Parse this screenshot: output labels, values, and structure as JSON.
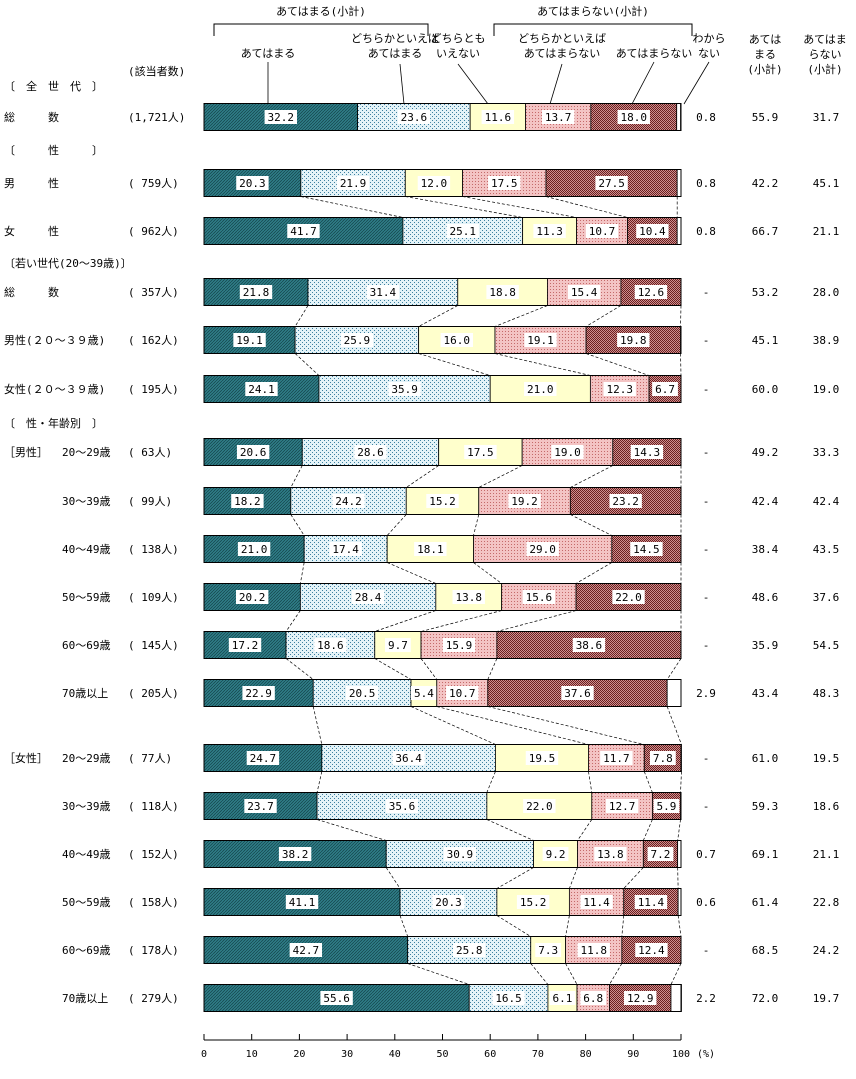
{
  "chart_data": {
    "type": "bar",
    "stacked": "100%",
    "header": {
      "applies_subtotal": "あてはまる(小計)",
      "not_applies_subtotal": "あてはまらない(小計)",
      "respondents_col": "(該当者数)",
      "categories": [
        {
          "key": "s1",
          "lines": [
            "あてはまる"
          ]
        },
        {
          "key": "s2",
          "lines": [
            "どちらかといえば",
            "あてはまる"
          ]
        },
        {
          "key": "s3",
          "lines": [
            "どちらとも",
            "いえない"
          ]
        },
        {
          "key": "s4",
          "lines": [
            "どちらかといえば",
            "あてはまらない"
          ]
        },
        {
          "key": "s5",
          "lines": [
            "あてはまらない"
          ]
        },
        {
          "key": "s6",
          "lines": [
            "わから",
            "ない"
          ]
        }
      ],
      "col_applies": [
        "あては",
        "まる",
        "(小計)"
      ],
      "col_not_applies": [
        "あてはま",
        "らない",
        "(小計)"
      ]
    },
    "sections": [
      {
        "label": "〔　全　世　代　〕",
        "rows": [
          {
            "label": "総　　　数",
            "n": "(1,721人)",
            "values": [
              32.2,
              23.6,
              11.6,
              13.7,
              18.0,
              0.8
            ],
            "labels": [
              "32.2",
              "23.6",
              "11.6",
              "13.7",
              "18.0",
              ""
            ],
            "dk": "0.8",
            "applies": "55.9",
            "not_applies": "31.7"
          }
        ]
      },
      {
        "label": "〔　　　性　　　〕",
        "rows": [
          {
            "label": "男　　　性",
            "n": "( 759人)",
            "values": [
              20.3,
              21.9,
              12.0,
              17.5,
              27.5,
              0.8
            ],
            "labels": [
              "20.3",
              "21.9",
              "12.0",
              "17.5",
              "27.5",
              ""
            ],
            "dk": "0.8",
            "applies": "42.2",
            "not_applies": "45.1"
          },
          {
            "label": "女　　　性",
            "n": "( 962人)",
            "values": [
              41.7,
              25.1,
              11.3,
              10.7,
              10.4,
              0.8
            ],
            "labels": [
              "41.7",
              "25.1",
              "11.3",
              "10.7",
              "10.4",
              ""
            ],
            "dk": "0.8",
            "applies": "66.7",
            "not_applies": "21.1"
          }
        ]
      },
      {
        "label": "〔若い世代(20～39歳)〕",
        "rows": [
          {
            "label": "総　　　数",
            "n": "( 357人)",
            "values": [
              21.8,
              31.4,
              18.8,
              15.4,
              12.6,
              0
            ],
            "labels": [
              "21.8",
              "31.4",
              "18.8",
              "15.4",
              "12.6",
              ""
            ],
            "dk": "-",
            "applies": "53.2",
            "not_applies": "28.0"
          },
          {
            "label": "男性(２０～３９歳)",
            "n": "( 162人)",
            "values": [
              19.1,
              25.9,
              16.0,
              19.1,
              19.8,
              0
            ],
            "labels": [
              "19.1",
              "25.9",
              "16.0",
              "19.1",
              "19.8",
              ""
            ],
            "dk": "-",
            "applies": "45.1",
            "not_applies": "38.9"
          },
          {
            "label": "女性(２０～３９歳)",
            "n": "( 195人)",
            "values": [
              24.1,
              35.9,
              21.0,
              12.3,
              6.7,
              0
            ],
            "labels": [
              "24.1",
              "35.9",
              "21.0",
              "12.3",
              "6.7",
              ""
            ],
            "dk": "-",
            "applies": "60.0",
            "not_applies": "19.0"
          }
        ]
      },
      {
        "label": "〔　性・年齢別　〕",
        "rows": [
          {
            "group": "［男性］",
            "label": "20～29歳",
            "n": "(  63人)",
            "values": [
              20.6,
              28.6,
              17.5,
              19.0,
              14.3,
              0
            ],
            "labels": [
              "20.6",
              "28.6",
              "17.5",
              "19.0",
              "14.3",
              ""
            ],
            "dk": "-",
            "applies": "49.2",
            "not_applies": "33.3"
          },
          {
            "label": "30～39歳",
            "n": "(  99人)",
            "values": [
              18.2,
              24.2,
              15.2,
              19.2,
              23.2,
              0
            ],
            "labels": [
              "18.2",
              "24.2",
              "15.2",
              "19.2",
              "23.2",
              ""
            ],
            "dk": "-",
            "applies": "42.4",
            "not_applies": "42.4"
          },
          {
            "label": "40～49歳",
            "n": "( 138人)",
            "values": [
              21.0,
              17.4,
              18.1,
              29.0,
              14.5,
              0
            ],
            "labels": [
              "21.0",
              "17.4",
              "18.1",
              "29.0",
              "14.5",
              ""
            ],
            "dk": "-",
            "applies": "38.4",
            "not_applies": "43.5"
          },
          {
            "label": "50～59歳",
            "n": "( 109人)",
            "values": [
              20.2,
              28.4,
              13.8,
              15.6,
              22.0,
              0
            ],
            "labels": [
              "20.2",
              "28.4",
              "13.8",
              "15.6",
              "22.0",
              ""
            ],
            "dk": "-",
            "applies": "48.6",
            "not_applies": "37.6"
          },
          {
            "label": "60～69歳",
            "n": "( 145人)",
            "values": [
              17.2,
              18.6,
              9.7,
              15.9,
              38.6,
              0
            ],
            "labels": [
              "17.2",
              "18.6",
              "9.7",
              "15.9",
              "38.6",
              ""
            ],
            "dk": "-",
            "applies": "35.9",
            "not_applies": "54.5"
          },
          {
            "label": "70歳以上",
            "n": "( 205人)",
            "values": [
              22.9,
              20.5,
              5.4,
              10.7,
              37.6,
              2.9
            ],
            "labels": [
              "22.9",
              "20.5",
              "5.4",
              "10.7",
              "37.6",
              ""
            ],
            "dk": "2.9",
            "applies": "43.4",
            "not_applies": "48.3"
          },
          {
            "group": "［女性］",
            "label": "20～29歳",
            "n": "(  77人)",
            "values": [
              24.7,
              36.4,
              19.5,
              11.7,
              7.8,
              0
            ],
            "labels": [
              "24.7",
              "36.4",
              "19.5",
              "11.7",
              "7.8",
              ""
            ],
            "dk": "-",
            "applies": "61.0",
            "not_applies": "19.5"
          },
          {
            "label": "30～39歳",
            "n": "( 118人)",
            "values": [
              23.7,
              35.6,
              22.0,
              12.7,
              5.9,
              0
            ],
            "labels": [
              "23.7",
              "35.6",
              "22.0",
              "12.7",
              "5.9",
              ""
            ],
            "dk": "-",
            "applies": "59.3",
            "not_applies": "18.6"
          },
          {
            "label": "40～49歳",
            "n": "( 152人)",
            "values": [
              38.2,
              30.9,
              9.2,
              13.8,
              7.2,
              0.7
            ],
            "labels": [
              "38.2",
              "30.9",
              "9.2",
              "13.8",
              "7.2",
              ""
            ],
            "dk": "0.7",
            "applies": "69.1",
            "not_applies": "21.1"
          },
          {
            "label": "50～59歳",
            "n": "( 158人)",
            "values": [
              41.1,
              20.3,
              15.2,
              11.4,
              11.4,
              0.6
            ],
            "labels": [
              "41.1",
              "20.3",
              "15.2",
              "11.4",
              "11.4",
              ""
            ],
            "dk": "0.6",
            "applies": "61.4",
            "not_applies": "22.8"
          },
          {
            "label": "60～69歳",
            "n": "( 178人)",
            "values": [
              42.7,
              25.8,
              7.3,
              11.8,
              12.4,
              0
            ],
            "labels": [
              "42.7",
              "25.8",
              "7.3",
              "11.8",
              "12.4",
              ""
            ],
            "dk": "-",
            "applies": "68.5",
            "not_applies": "24.2"
          },
          {
            "label": "70歳以上",
            "n": "( 279人)",
            "values": [
              55.6,
              16.5,
              6.1,
              6.8,
              12.9,
              2.2
            ],
            "labels": [
              "55.6",
              "16.5",
              "6.1",
              "6.8",
              "12.9",
              ""
            ],
            "dk": "2.2",
            "applies": "72.0",
            "not_applies": "19.7"
          }
        ]
      }
    ],
    "xaxis": {
      "ticks": [
        "0",
        "10",
        "20",
        "30",
        "40",
        "50",
        "60",
        "70",
        "80",
        "90",
        "100"
      ],
      "unit": "(%)",
      "range": [
        0,
        100
      ]
    },
    "colors": {
      "s1": "#2e7b85",
      "s1_pattern": "#0e3a40",
      "s2": "#e4f3f8",
      "s2_pattern": "#3d80a0",
      "s3": "#ffffcc",
      "s4": "#f3c4c4",
      "s4_pattern": "#c46a6a",
      "s5": "#cf8f8f",
      "s5_pattern": "#6a2020",
      "s6": "#ffffff"
    }
  }
}
